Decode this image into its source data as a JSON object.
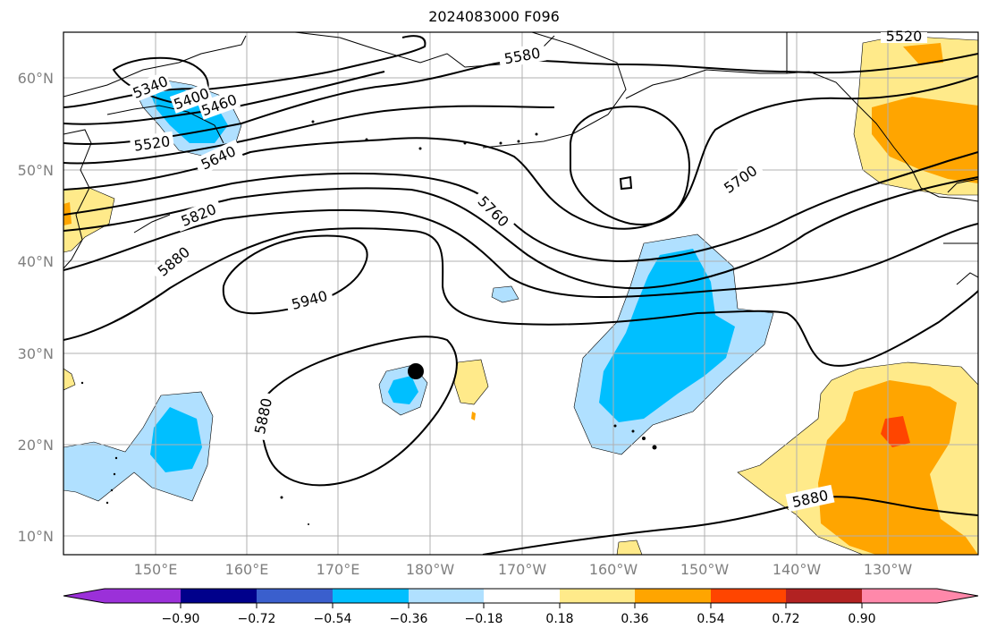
{
  "title": "2024083000 F096",
  "map": {
    "lat_labels": [
      "60°N",
      "50°N",
      "40°N",
      "30°N",
      "20°N",
      "10°N"
    ],
    "lon_labels": [
      "150°E",
      "160°E",
      "170°E",
      "180°W",
      "170°W",
      "160°W",
      "150°W",
      "140°W",
      "130°W"
    ],
    "contour_labels": [
      "5340",
      "5400",
      "5460",
      "5520",
      "5580",
      "5640",
      "5700",
      "5760",
      "5820",
      "5880",
      "5940",
      "5880",
      "5880"
    ],
    "marker": "black-dot"
  },
  "colorbar": {
    "ticks": [
      "−0.90",
      "−0.72",
      "−0.54",
      "−0.36",
      "−0.18",
      "0.18",
      "0.36",
      "0.54",
      "0.72",
      "0.90"
    ],
    "colors": [
      "#9b30d9",
      "#00008b",
      "#3a5fcd",
      "#00bfff",
      "#b0e0ff",
      "#ffffff",
      "#ffea8a",
      "#ffa500",
      "#ff4500",
      "#b22222",
      "#ff88aa"
    ]
  }
}
